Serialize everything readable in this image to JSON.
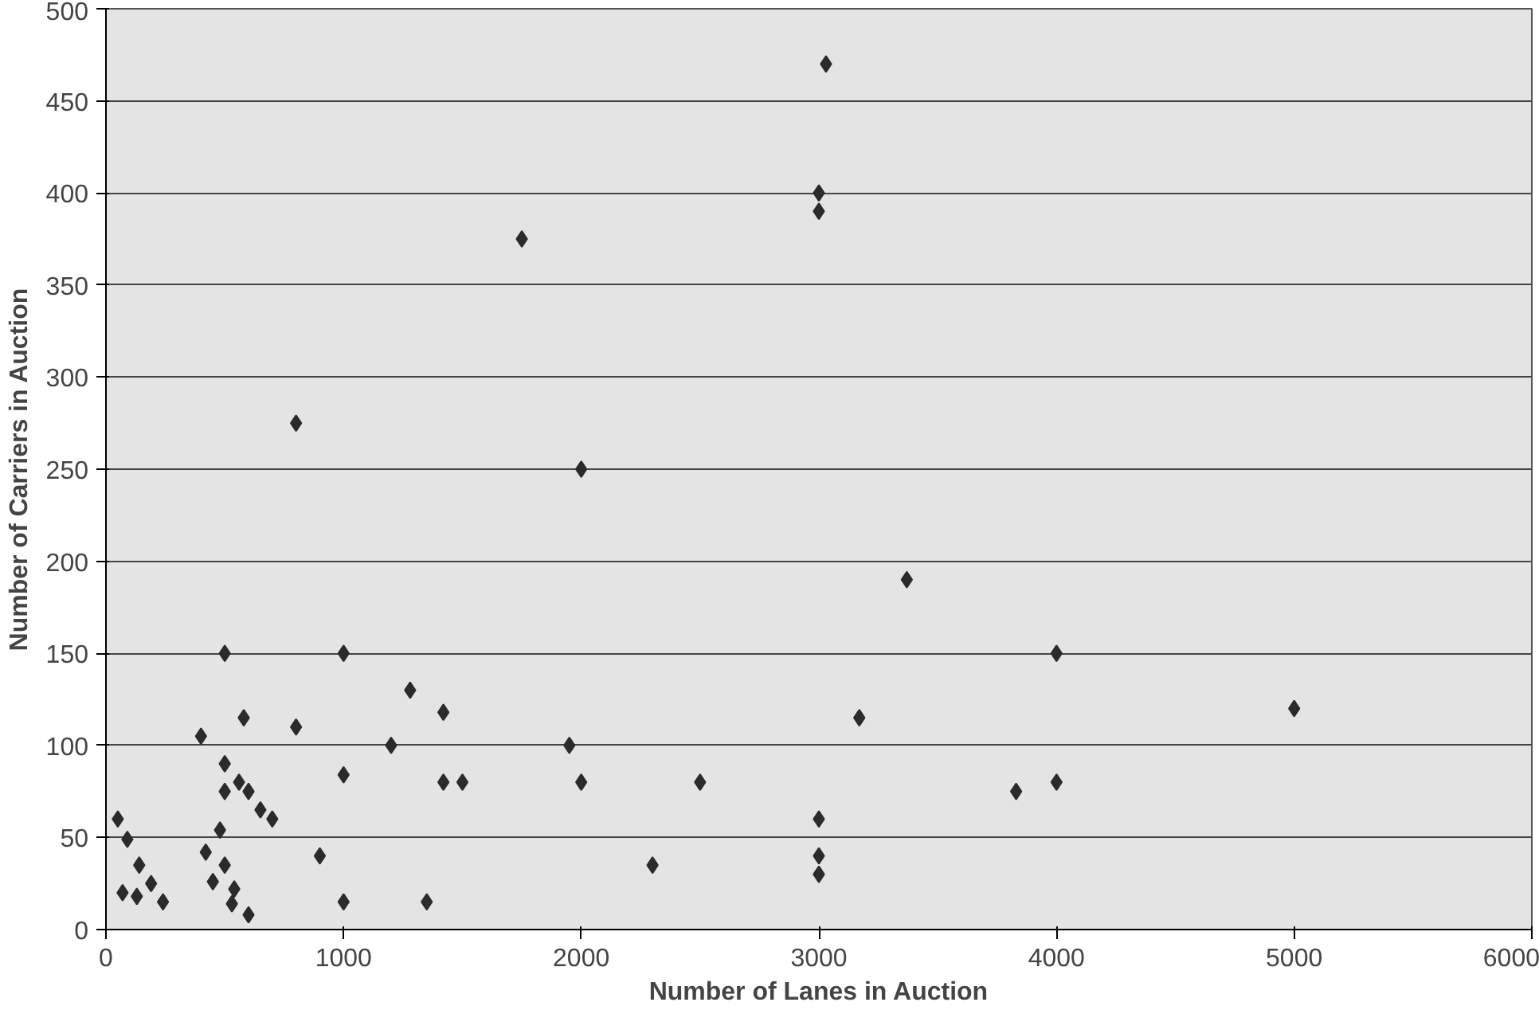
{
  "chart_data": {
    "type": "scatter",
    "xlabel": "Number of Lanes in Auction",
    "ylabel": "Number of Carriers in Auction",
    "x": [
      50,
      90,
      140,
      70,
      130,
      190,
      240,
      400,
      420,
      450,
      480,
      500,
      500,
      500,
      500,
      530,
      540,
      560,
      580,
      600,
      600,
      650,
      700,
      800,
      800,
      900,
      1000,
      1000,
      1000,
      1200,
      1280,
      1350,
      1420,
      1420,
      1500,
      1750,
      1950,
      2000,
      2000,
      2300,
      2500,
      3000,
      3000,
      3030,
      3000,
      3000,
      3000,
      3170,
      3370,
      3830,
      4000,
      4000,
      5000
    ],
    "series": [
      {
        "color": "#2b2b2b",
        "values": [
          60,
          49,
          35,
          20,
          18,
          25,
          15,
          105,
          42,
          26,
          54,
          150,
          90,
          75,
          35,
          14,
          22,
          80,
          115,
          75,
          8,
          65,
          60,
          110,
          275,
          40,
          150,
          84,
          15,
          100,
          130,
          15,
          118,
          80,
          80,
          375,
          100,
          80,
          250,
          35,
          80,
          400,
          390,
          470,
          60,
          40,
          30,
          115,
          190,
          75,
          150,
          80,
          120
        ]
      }
    ],
    "xlim": [
      0,
      6000
    ],
    "xticks": [
      0,
      1000,
      2000,
      3000,
      4000,
      5000,
      6000
    ],
    "ylim": [
      0,
      500
    ],
    "yticks": [
      0,
      50,
      100,
      150,
      200,
      250,
      300,
      350,
      400,
      450,
      500
    ],
    "grid": "y",
    "marker": "diamond"
  }
}
